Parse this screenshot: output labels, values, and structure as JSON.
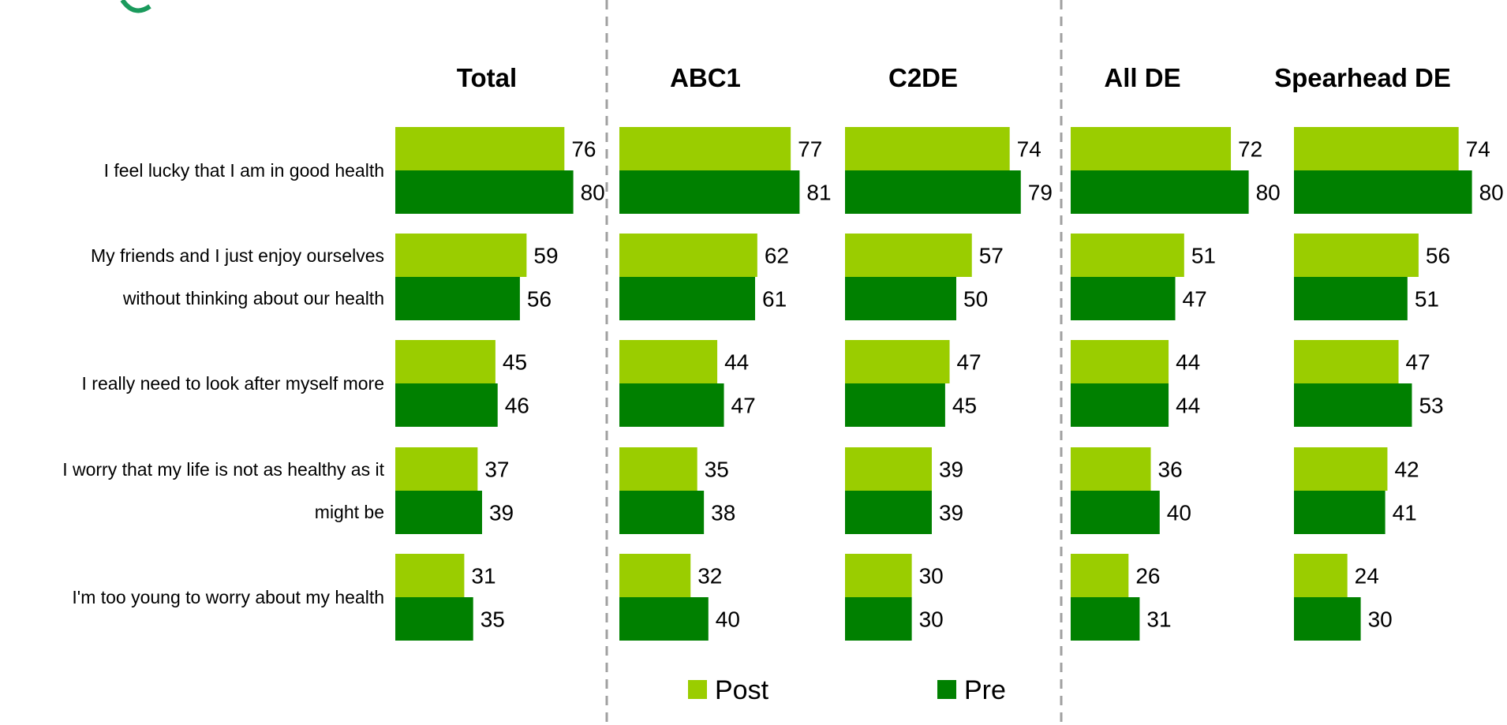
{
  "chart_data": {
    "type": "bar",
    "orientation": "horizontal",
    "categories": [
      [
        "I feel lucky that I am in good health"
      ],
      [
        "My friends and I just enjoy ourselves",
        "without thinking about our health"
      ],
      [
        "I really need to look after myself more"
      ],
      [
        "I worry that my life is not as healthy as it",
        "might be"
      ],
      [
        "I'm too young to worry about my health"
      ]
    ],
    "panels": [
      {
        "title": "Total",
        "series": [
          {
            "name": "Post",
            "values": [
              76,
              59,
              45,
              37,
              31
            ]
          },
          {
            "name": "Pre",
            "values": [
              80,
              56,
              46,
              39,
              35
            ]
          }
        ]
      },
      {
        "title": "ABC1",
        "series": [
          {
            "name": "Post",
            "values": [
              77,
              62,
              44,
              35,
              32
            ]
          },
          {
            "name": "Pre",
            "values": [
              81,
              61,
              47,
              38,
              40
            ]
          }
        ]
      },
      {
        "title": "C2DE",
        "series": [
          {
            "name": "Post",
            "values": [
              74,
              57,
              47,
              39,
              30
            ]
          },
          {
            "name": "Pre",
            "values": [
              79,
              50,
              45,
              39,
              30
            ]
          }
        ]
      },
      {
        "title": "All DE",
        "series": [
          {
            "name": "Post",
            "values": [
              72,
              51,
              44,
              36,
              26
            ]
          },
          {
            "name": "Pre",
            "values": [
              80,
              47,
              44,
              40,
              31
            ]
          }
        ]
      },
      {
        "title": "Spearhead DE",
        "series": [
          {
            "name": "Post",
            "values": [
              74,
              56,
              47,
              42,
              24
            ]
          },
          {
            "name": "Pre",
            "values": [
              80,
              51,
              53,
              41,
              30
            ]
          }
        ]
      }
    ],
    "legend": [
      {
        "name": "Post",
        "color": "#9acd00"
      },
      {
        "name": "Pre",
        "color": "#008000"
      }
    ],
    "legend_position": "bottom-center",
    "colors": {
      "Post": "#9acd00",
      "Pre": "#008000",
      "title_accent": "#1a9a5c",
      "divider": "#a0a0a0"
    },
    "grid": false
  }
}
